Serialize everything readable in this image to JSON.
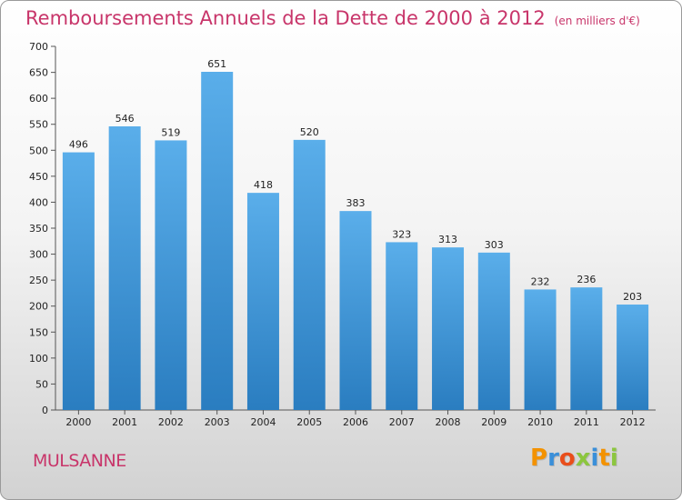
{
  "title": "Remboursements Annuels de la Dette de 2000 à 2012",
  "subtitle": "(en milliers d'€)",
  "city": "MULSANNE",
  "logo": {
    "letters": [
      "P",
      "r",
      "o",
      "x",
      "i",
      "t",
      "i"
    ],
    "colors": [
      "#f39200",
      "#3a8fd9",
      "#e94e1b",
      "#8cc63f",
      "#3a8fd9",
      "#f39200",
      "#8cc63f"
    ]
  },
  "colors": {
    "bar_top": "#5aaeea",
    "bar_bottom": "#2a7dc0",
    "title": "#c8356a"
  },
  "chart_data": {
    "type": "bar",
    "title": "Remboursements Annuels de la Dette de 2000 à 2012",
    "categories": [
      "2000",
      "2001",
      "2002",
      "2003",
      "2004",
      "2005",
      "2006",
      "2007",
      "2008",
      "2009",
      "2010",
      "2011",
      "2012"
    ],
    "values": [
      496,
      546,
      519,
      651,
      418,
      520,
      383,
      323,
      313,
      303,
      232,
      236,
      203
    ],
    "ylim": [
      0,
      700
    ],
    "yticks": [
      0,
      50,
      100,
      150,
      200,
      250,
      300,
      350,
      400,
      450,
      500,
      550,
      600,
      650,
      700
    ],
    "grid": false,
    "legend": "none"
  }
}
